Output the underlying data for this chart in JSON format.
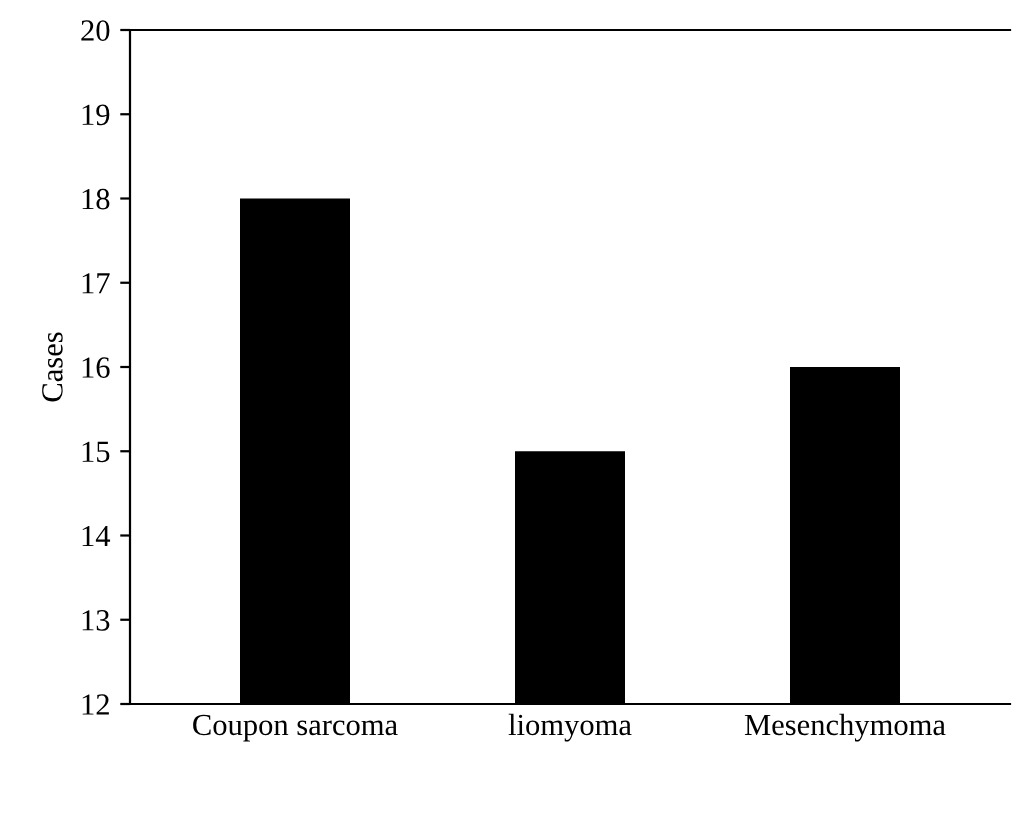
{
  "chart_data": {
    "type": "bar",
    "ylabel": "Cases",
    "categories": [
      "Coupon sarcoma",
      "liomyoma",
      "Mesenchymoma"
    ],
    "values": [
      18,
      15,
      16
    ],
    "color": "#000000",
    "ylim": [
      12,
      20
    ],
    "yticks": [
      12,
      13,
      14,
      15,
      16,
      17,
      18,
      19,
      20
    ],
    "grid": false
  }
}
